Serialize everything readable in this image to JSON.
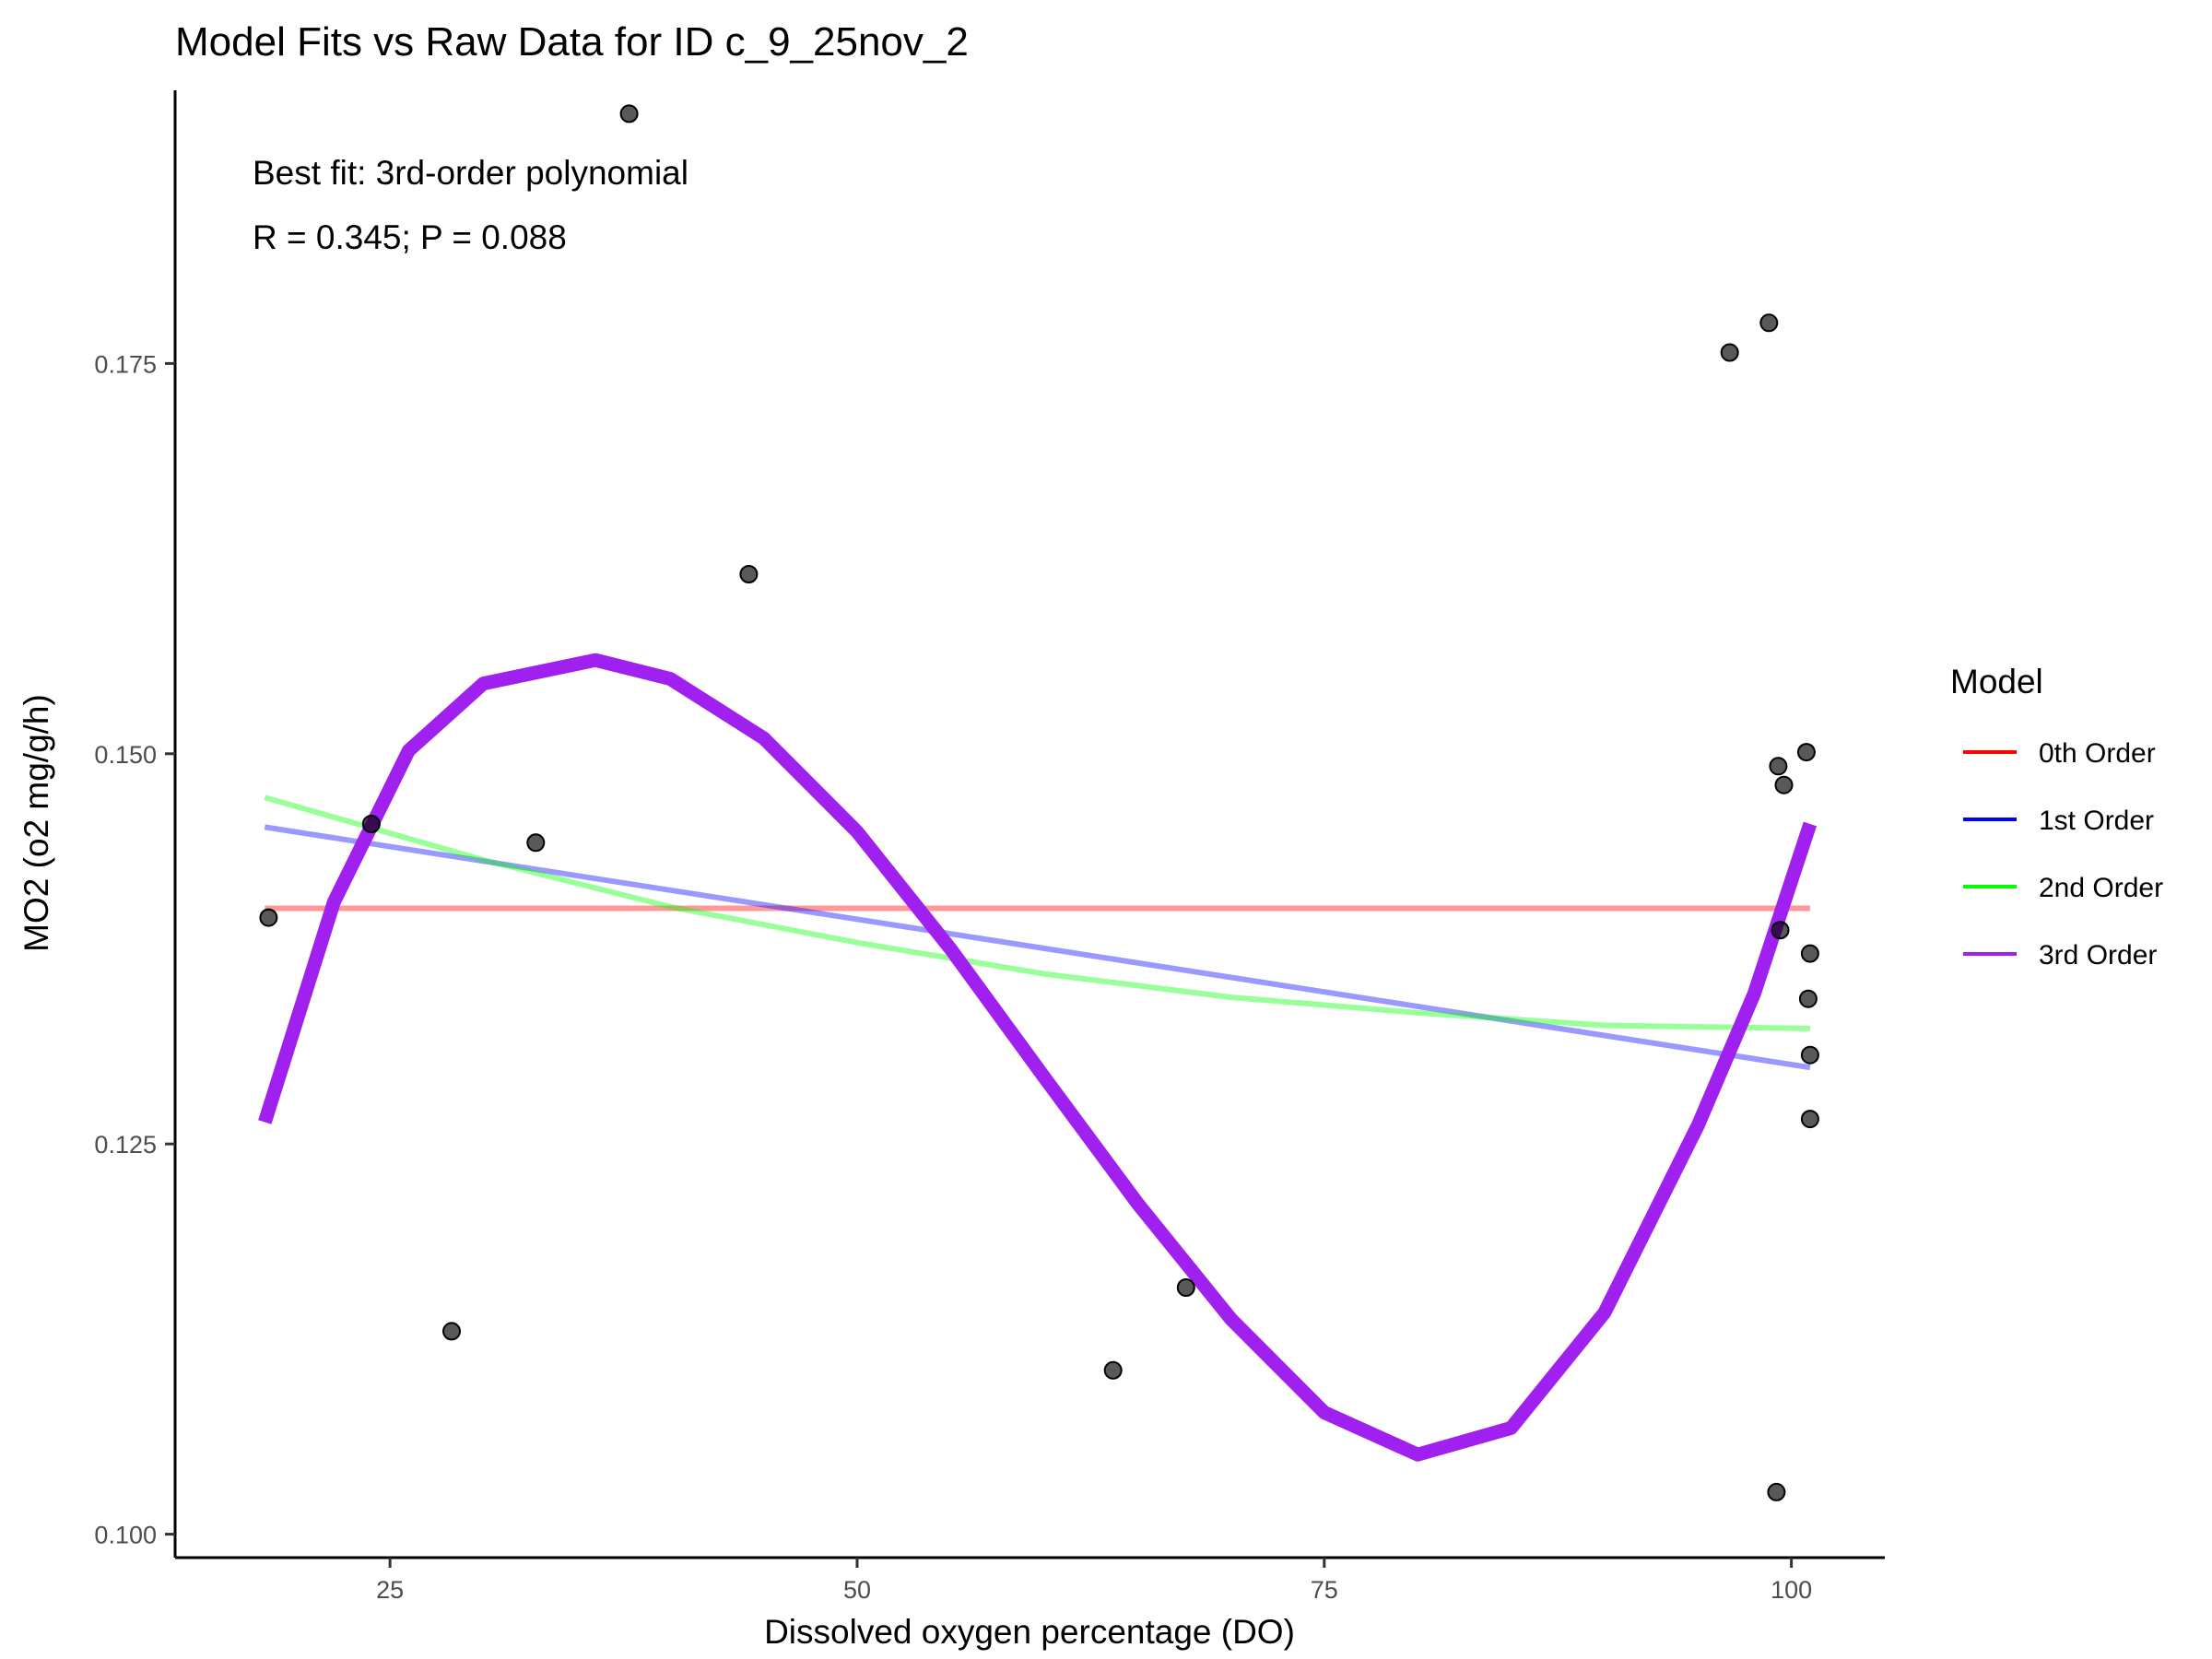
{
  "chart_data": {
    "type": "scatter",
    "title": "Model Fits vs Raw Data for ID c_9_25nov_2",
    "xlabel": "Dissolved oxygen percentage (DO)",
    "ylabel": "MO2 (o2 mg/g/h)",
    "xlim": [
      13.5,
      105
    ],
    "ylim": [
      0.0985,
      0.1925
    ],
    "x_ticks": [
      25,
      50,
      75,
      100
    ],
    "x_tick_labels": [
      "25",
      "50",
      "75",
      "100"
    ],
    "y_ticks": [
      0.1,
      0.125,
      0.15,
      0.175
    ],
    "y_tick_labels": [
      "0.100",
      "0.125",
      "0.150",
      "0.175"
    ],
    "grid": false,
    "annotations": [
      "Best fit: 3rd-order polynomial",
      "R = 0.345; P = 0.088"
    ],
    "legend": {
      "title": "Model",
      "position": "right",
      "entries": [
        {
          "label": "0th Order",
          "color": "#ff0000"
        },
        {
          "label": "1st Order",
          "color": "#0000ff"
        },
        {
          "label": "2nd Order",
          "color": "#00ff00"
        },
        {
          "label": "3rd Order",
          "color": "#a020f0"
        }
      ]
    },
    "points": [
      {
        "x": 18.5,
        "y": 0.1395
      },
      {
        "x": 24.0,
        "y": 0.1455
      },
      {
        "x": 28.3,
        "y": 0.113
      },
      {
        "x": 32.8,
        "y": 0.1443
      },
      {
        "x": 37.8,
        "y": 0.191
      },
      {
        "x": 44.2,
        "y": 0.1615
      },
      {
        "x": 63.7,
        "y": 0.1105
      },
      {
        "x": 67.6,
        "y": 0.1158
      },
      {
        "x": 96.7,
        "y": 0.1757
      },
      {
        "x": 98.8,
        "y": 0.1776
      },
      {
        "x": 99.2,
        "y": 0.1027
      },
      {
        "x": 99.3,
        "y": 0.1492
      },
      {
        "x": 99.4,
        "y": 0.1387
      },
      {
        "x": 99.6,
        "y": 0.148
      },
      {
        "x": 100.8,
        "y": 0.1501
      },
      {
        "x": 100.9,
        "y": 0.1343
      },
      {
        "x": 101.0,
        "y": 0.1372
      },
      {
        "x": 101.0,
        "y": 0.1307
      },
      {
        "x": 101.0,
        "y": 0.1266
      }
    ],
    "series": [
      {
        "name": "0th Order",
        "color": "#ff0000",
        "alpha": 0.4,
        "width": "thin",
        "x": [
          18.3,
          101.0
        ],
        "y": [
          0.1401,
          0.1401
        ]
      },
      {
        "name": "1st Order",
        "color": "#0000ff",
        "alpha": 0.4,
        "width": "thin",
        "x": [
          18.3,
          101.0
        ],
        "y": [
          0.1453,
          0.1299
        ]
      },
      {
        "name": "2nd Order",
        "color": "#00ff00",
        "alpha": 0.4,
        "width": "thin",
        "x": [
          18.3,
          30,
          40,
          50,
          60,
          70,
          80,
          90,
          101.0
        ],
        "y": [
          0.1472,
          0.1432,
          0.1402,
          0.1379,
          0.1359,
          0.1344,
          0.1334,
          0.1326,
          0.1324
        ]
      },
      {
        "name": "3rd Order",
        "color": "#a020f0",
        "alpha": 1,
        "width": "thick",
        "x": [
          18.3,
          22,
          26,
          30,
          36,
          40,
          45,
          50,
          55,
          60,
          65,
          70,
          75,
          80,
          85,
          90,
          95,
          98,
          101.0
        ],
        "y": [
          0.1264,
          0.1405,
          0.1502,
          0.1545,
          0.156,
          0.1548,
          0.151,
          0.145,
          0.1375,
          0.1293,
          0.1212,
          0.1138,
          0.1078,
          0.1051,
          0.1068,
          0.1142,
          0.1262,
          0.1346,
          0.1455
        ]
      }
    ]
  }
}
